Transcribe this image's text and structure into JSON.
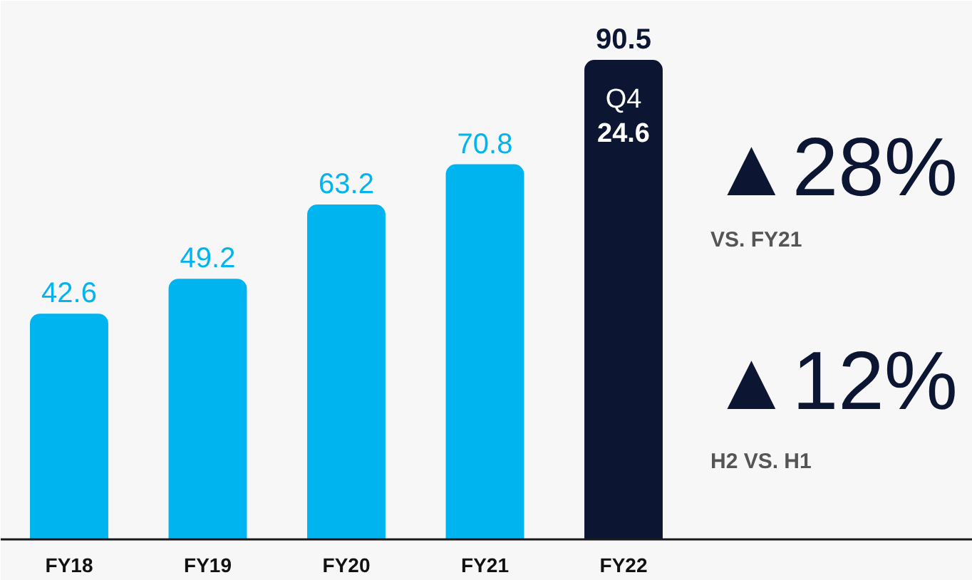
{
  "chart_data": {
    "type": "bar",
    "categories": [
      "FY18",
      "FY19",
      "FY20",
      "FY21",
      "FY22"
    ],
    "values": [
      42.6,
      49.2,
      63.2,
      70.8,
      90.5
    ],
    "colors": [
      "#00b4ef",
      "#00b4ef",
      "#00b4ef",
      "#00b4ef",
      "#0c1633"
    ],
    "data_labels": true,
    "annotations": [
      "Q4",
      "24.6",
      "▲28%",
      "VS. FY21",
      "▲12%",
      "H2 VS. H1"
    ]
  }
}
